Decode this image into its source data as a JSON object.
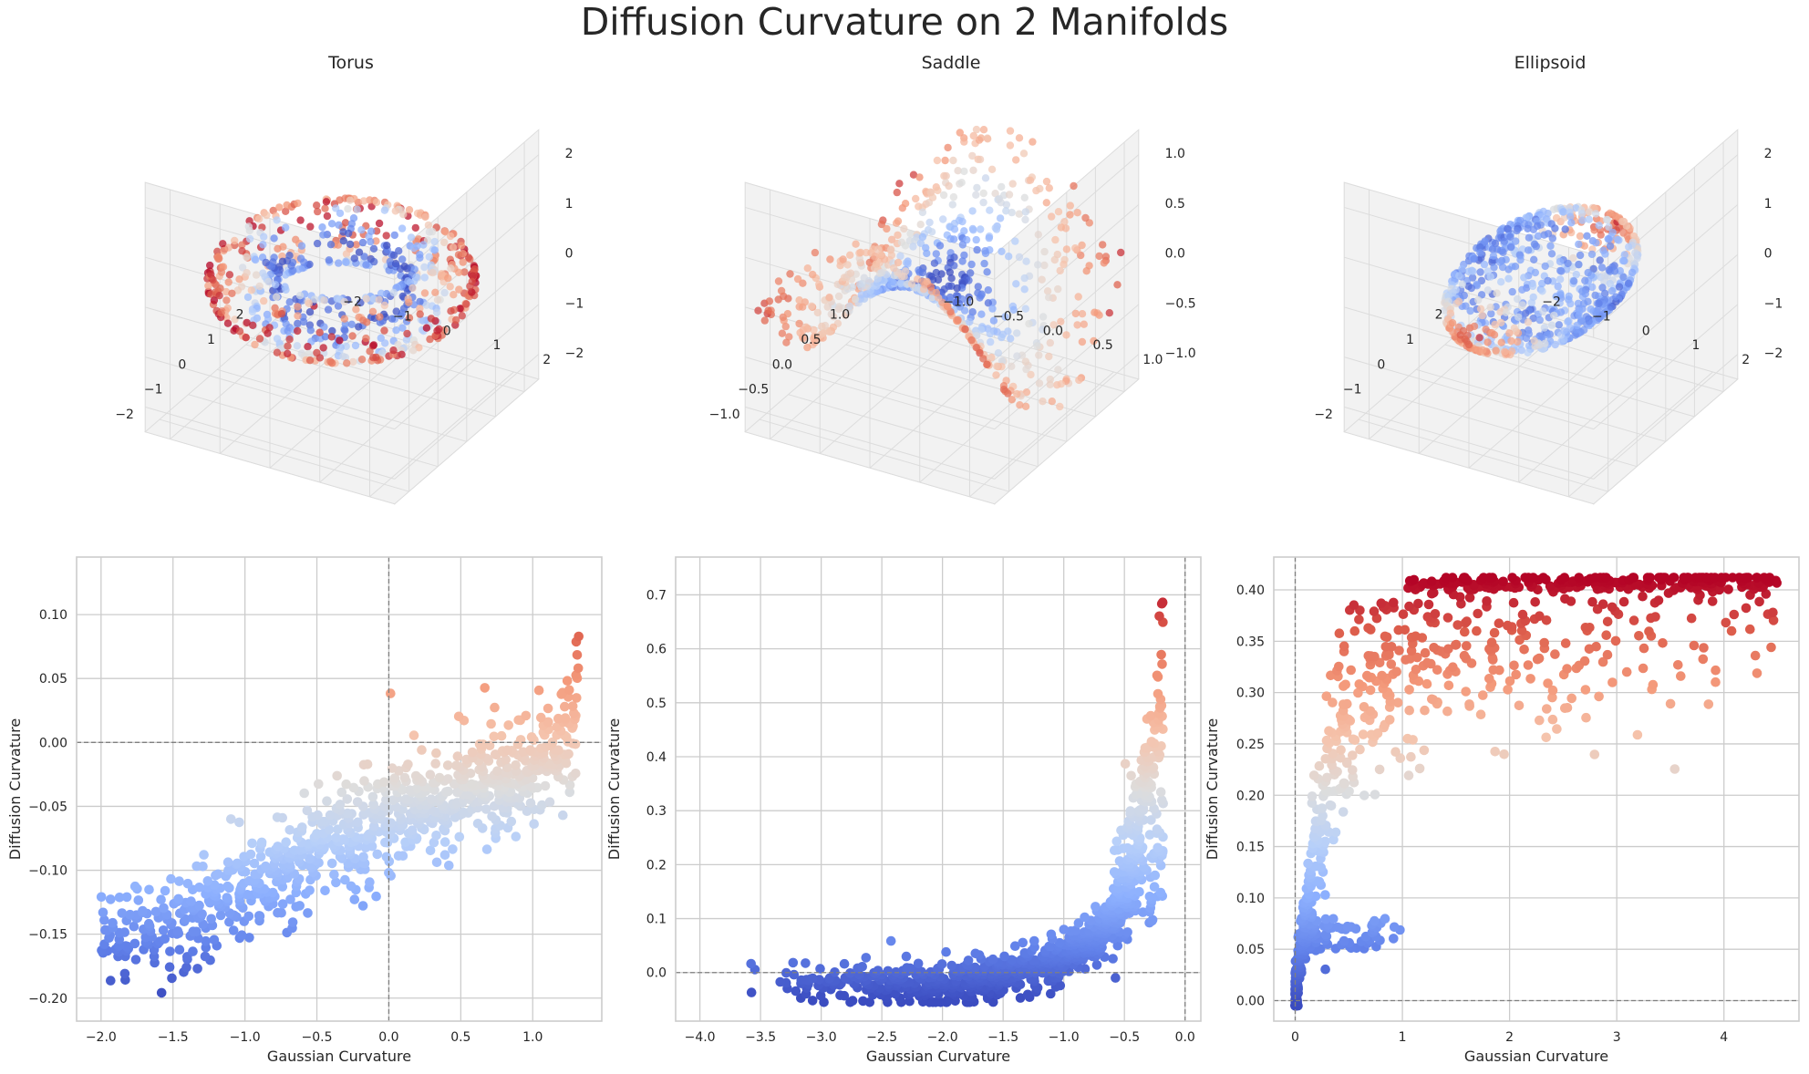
{
  "figure": {
    "title": "Diffusion Curvature on 2 Manifolds"
  },
  "colors": {
    "cool": "#3b4cc0",
    "warm": "#b40426",
    "grid": "#cccccc",
    "pane": "#f2f2f2",
    "refline": "#808080"
  },
  "chart_data": [
    {
      "type": "scatter3d",
      "title": "Torus",
      "colormap": "coolwarm",
      "x_ticks": [
        "−2",
        "−1",
        "0",
        "1",
        "2"
      ],
      "y_ticks": [
        "−2",
        "−1",
        "0",
        "1",
        "2"
      ],
      "z_ticks": [
        "−2",
        "−1",
        "0",
        "1",
        "2"
      ],
      "xlim": [
        -2.5,
        2.5
      ],
      "ylim": [
        -2.5,
        2.5
      ],
      "zlim": [
        -2.5,
        2.5
      ],
      "surface": "torus",
      "n_points": 700
    },
    {
      "type": "scatter3d",
      "title": "Saddle",
      "colormap": "coolwarm",
      "x_ticks": [
        "−1.0",
        "−0.5",
        "0.0",
        "0.5",
        "1.0"
      ],
      "y_ticks": [
        "−1.0",
        "−0.5",
        "0.0",
        "0.5",
        "1.0"
      ],
      "z_ticks": [
        "−1.0",
        "−0.5",
        "0.0",
        "0.5",
        "1.0"
      ],
      "xlim": [
        -1.25,
        1.25
      ],
      "ylim": [
        -1.25,
        1.25
      ],
      "zlim": [
        -1.25,
        1.25
      ],
      "surface": "saddle",
      "n_points": 700
    },
    {
      "type": "scatter3d",
      "title": "Ellipsoid",
      "colormap": "coolwarm",
      "x_ticks": [
        "−2",
        "−1",
        "0",
        "1",
        "2"
      ],
      "y_ticks": [
        "−2",
        "−1",
        "0",
        "1",
        "2"
      ],
      "z_ticks": [
        "−2",
        "−1",
        "0",
        "1",
        "2"
      ],
      "xlim": [
        -2.5,
        2.5
      ],
      "ylim": [
        -2.5,
        2.5
      ],
      "zlim": [
        -2.5,
        2.5
      ],
      "surface": "ellipsoid",
      "n_points": 700
    },
    {
      "type": "scatter",
      "xlabel": "Gaussian Curvature",
      "ylabel": "Diffusion Curvature",
      "xlim": [
        -2.17,
        1.48
      ],
      "ylim": [
        -0.218,
        0.145
      ],
      "x_ticks": [
        -2.0,
        -1.5,
        -1.0,
        -0.5,
        0.0,
        0.5,
        1.0
      ],
      "x_tick_labels": [
        "−2.0",
        "−1.5",
        "−1.0",
        "−0.5",
        "0.0",
        "0.5",
        "1.0"
      ],
      "y_ticks": [
        -0.2,
        -0.15,
        -0.1,
        -0.05,
        0.0,
        0.05,
        0.1
      ],
      "y_tick_labels": [
        "−0.20",
        "−0.15",
        "−0.10",
        "−0.05",
        "0.00",
        "0.05",
        "0.10"
      ],
      "reference_lines": {
        "x": 0,
        "y": 0
      },
      "color_range": [
        -0.2,
        0.13
      ],
      "trend": {
        "x": [
          -2.0,
          -1.5,
          -1.0,
          -0.5,
          0.0,
          0.5,
          1.0,
          1.2,
          1.3,
          1.32
        ],
        "y": [
          -0.16,
          -0.14,
          -0.115,
          -0.085,
          -0.06,
          -0.04,
          -0.02,
          -0.005,
          0.03,
          0.128
        ]
      },
      "n_points": 900
    },
    {
      "type": "scatter",
      "xlabel": "Gaussian Curvature",
      "ylabel": "Diffusion Curvature",
      "xlim": [
        -4.2,
        0.13
      ],
      "ylim": [
        -0.09,
        0.77
      ],
      "x_ticks": [
        -4.0,
        -3.5,
        -3.0,
        -2.5,
        -2.0,
        -1.5,
        -1.0,
        -0.5,
        0.0
      ],
      "x_tick_labels": [
        "−4.0",
        "−3.5",
        "−3.0",
        "−2.5",
        "−2.0",
        "−1.5",
        "−1.0",
        "−0.5",
        "0.0"
      ],
      "y_ticks": [
        0.0,
        0.1,
        0.2,
        0.3,
        0.4,
        0.5,
        0.6,
        0.7
      ],
      "y_tick_labels": [
        "0.0",
        "0.1",
        "0.2",
        "0.3",
        "0.4",
        "0.5",
        "0.6",
        "0.7"
      ],
      "reference_lines": {
        "x": 0,
        "y": 0
      },
      "color_range": [
        -0.05,
        0.73
      ],
      "trend": {
        "x": [
          -4.0,
          -3.0,
          -2.0,
          -1.5,
          -1.0,
          -0.7,
          -0.5,
          -0.35,
          -0.25,
          -0.18
        ],
        "y": [
          -0.01,
          -0.02,
          -0.02,
          -0.01,
          0.03,
          0.07,
          0.15,
          0.3,
          0.5,
          0.73
        ]
      },
      "n_points": 1000
    },
    {
      "type": "scatter",
      "xlabel": "Gaussian Curvature",
      "ylabel": "Diffusion Curvature",
      "xlim": [
        -0.2,
        4.7
      ],
      "ylim": [
        -0.02,
        0.432
      ],
      "x_ticks": [
        0,
        1,
        2,
        3,
        4
      ],
      "x_tick_labels": [
        "0",
        "1",
        "2",
        "3",
        "4"
      ],
      "y_ticks": [
        0.0,
        0.05,
        0.1,
        0.15,
        0.2,
        0.25,
        0.3,
        0.35,
        0.4
      ],
      "y_tick_labels": [
        "0.00",
        "0.05",
        "0.10",
        "0.15",
        "0.20",
        "0.25",
        "0.30",
        "0.35",
        "0.40"
      ],
      "reference_lines": {
        "x": 0,
        "y": 0
      },
      "color_range": [
        0.0,
        0.41
      ],
      "trend": {
        "x": [
          0.0,
          0.05,
          0.1,
          0.2,
          0.4,
          0.7,
          1.0,
          2.0,
          3.0,
          4.5
        ],
        "y": [
          0.0,
          0.05,
          0.08,
          0.15,
          0.25,
          0.31,
          0.33,
          0.35,
          0.37,
          0.4
        ]
      },
      "n_points": 900
    }
  ]
}
